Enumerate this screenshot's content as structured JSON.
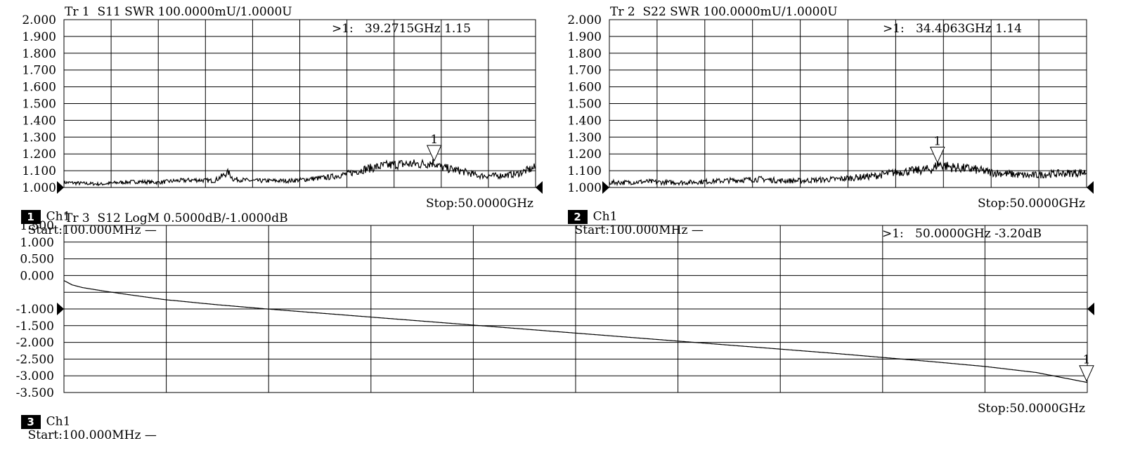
{
  "traces": [
    {
      "header": "Tr 1  S11 SWR 100.0000mU/1.0000U",
      "marker_readout": ">1:   39.2715GHz 1.15",
      "marker_label": "1",
      "channel_number": "1",
      "channel_label": "Ch1",
      "start_label": "Start:100.000MHz —",
      "stop_label": "Stop:50.0000GHz",
      "y_ticks": [
        "2.000",
        "1.900",
        "1.800",
        "1.700",
        "1.600",
        "1.500",
        "1.400",
        "1.300",
        "1.200",
        "1.100",
        "1.000"
      ]
    },
    {
      "header": "Tr 2  S22 SWR 100.0000mU/1.0000U",
      "marker_readout": ">1:   34.4063GHz 1.14",
      "marker_label": "1",
      "channel_number": "2",
      "channel_label": "Ch1",
      "start_label": "Start:100.000MHz —",
      "stop_label": "Stop:50.0000GHz",
      "y_ticks": [
        "2.000",
        "1.900",
        "1.800",
        "1.700",
        "1.600",
        "1.500",
        "1.400",
        "1.300",
        "1.200",
        "1.100",
        "1.000"
      ]
    },
    {
      "header": "Tr 3  S12 LogM 0.5000dB/-1.0000dB",
      "marker_readout": ">1:   50.0000GHz -3.20dB",
      "marker_label": "1",
      "channel_number": "3",
      "channel_label": "Ch1",
      "start_label": "Start:100.000MHz —",
      "stop_label": "Stop:50.0000GHz",
      "y_ticks": [
        "1.500",
        "1.000",
        "0.500",
        "0.000",
        "-1.000",
        "-1.500",
        "-2.000",
        "-2.500",
        "-3.000",
        "-3.500"
      ]
    }
  ],
  "chart_data": [
    {
      "type": "line",
      "title": "Tr 1  S11 SWR 100.0000mU/1.0000U",
      "x_unit": "GHz",
      "xlim": [
        0.1,
        50.0
      ],
      "ylim": [
        1.0,
        2.0
      ],
      "grid": true,
      "series": [
        {
          "x": [
            0.1,
            2,
            4,
            6,
            8,
            10,
            12,
            14,
            16,
            17.5,
            18,
            20,
            22,
            24,
            26,
            28,
            30,
            32,
            34,
            36,
            38,
            39.27,
            40,
            42,
            44,
            46,
            48,
            49,
            50
          ],
          "y": [
            1.03,
            1.025,
            1.02,
            1.03,
            1.035,
            1.03,
            1.04,
            1.045,
            1.04,
            1.09,
            1.05,
            1.04,
            1.04,
            1.04,
            1.05,
            1.06,
            1.08,
            1.11,
            1.13,
            1.14,
            1.14,
            1.15,
            1.12,
            1.1,
            1.07,
            1.07,
            1.08,
            1.1,
            1.12
          ]
        }
      ],
      "markers": [
        {
          "label": "1",
          "x": 39.2715,
          "y": 1.15
        }
      ]
    },
    {
      "type": "line",
      "title": "Tr 2  S22 SWR 100.0000mU/1.0000U",
      "x_unit": "GHz",
      "xlim": [
        0.1,
        50.0
      ],
      "ylim": [
        1.0,
        2.0
      ],
      "grid": true,
      "series": [
        {
          "x": [
            0.1,
            2,
            4,
            6,
            8,
            10,
            12,
            14,
            16,
            18,
            20,
            22,
            24,
            26,
            28,
            30,
            32,
            34,
            34.41,
            36,
            38,
            40,
            42,
            44,
            46,
            48,
            50
          ],
          "y": [
            1.03,
            1.03,
            1.035,
            1.03,
            1.03,
            1.035,
            1.04,
            1.045,
            1.05,
            1.04,
            1.04,
            1.045,
            1.05,
            1.06,
            1.07,
            1.09,
            1.1,
            1.11,
            1.14,
            1.12,
            1.11,
            1.09,
            1.08,
            1.07,
            1.08,
            1.085,
            1.09
          ]
        }
      ],
      "markers": [
        {
          "label": "1",
          "x": 34.4063,
          "y": 1.14
        }
      ]
    },
    {
      "type": "line",
      "title": "Tr 3  S12 LogM 0.5000dB/-1.0000dB",
      "x_unit": "GHz",
      "xlim": [
        0.1,
        50.0
      ],
      "ylim": [
        -3.5,
        1.5
      ],
      "grid": true,
      "series": [
        {
          "x": [
            0.1,
            0.5,
            1,
            2,
            3,
            5,
            7.5,
            10,
            12.5,
            15,
            17.5,
            20,
            22.5,
            25,
            27.5,
            30,
            32.5,
            35,
            37.5,
            40,
            42.5,
            45,
            47.5,
            50
          ],
          "y": [
            -0.15,
            -0.28,
            -0.36,
            -0.46,
            -0.55,
            -0.72,
            -0.87,
            -1.0,
            -1.12,
            -1.24,
            -1.36,
            -1.48,
            -1.6,
            -1.72,
            -1.84,
            -1.96,
            -2.08,
            -2.2,
            -2.32,
            -2.45,
            -2.58,
            -2.72,
            -2.9,
            -3.2
          ]
        }
      ],
      "markers": [
        {
          "label": "1",
          "x": 50.0,
          "y": -3.2
        }
      ]
    }
  ]
}
